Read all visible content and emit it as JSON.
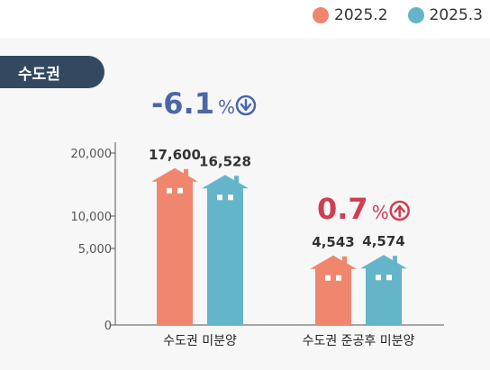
{
  "colors": {
    "series1": "#ef866d",
    "series2": "#64b5c9",
    "tag_bg": "#33495f",
    "decrease": "#4a67a6",
    "increase": "#cf3f52",
    "axis": "#555555",
    "tick_text": "#555555",
    "value_text": "#333333"
  },
  "legend": {
    "items": [
      {
        "label": "2025.2",
        "color": "#ef866d"
      },
      {
        "label": "2025.3",
        "color": "#64b5c9"
      }
    ]
  },
  "region_tag": "수도권",
  "changes": [
    {
      "value": "-6.1",
      "unit": "%",
      "direction": "down",
      "icon": "arrow-down-circle-icon"
    },
    {
      "value": "0.7",
      "unit": "%",
      "direction": "up",
      "icon": "arrow-up-circle-icon"
    }
  ],
  "chart_data": {
    "type": "bar",
    "categories": [
      "수도권 미분양",
      "수도권 준공후 미분양"
    ],
    "series": [
      {
        "name": "2025.2",
        "values": [
          17600,
          4543
        ],
        "color": "#ef866d"
      },
      {
        "name": "2025.3",
        "values": [
          16528,
          4574
        ],
        "color": "#64b5c9"
      }
    ],
    "value_labels": [
      [
        "17,600",
        "4,543"
      ],
      [
        "16,528",
        "4,574"
      ]
    ],
    "y_ticks": [
      0,
      5000,
      10000,
      20000
    ],
    "y_tick_labels": [
      "0",
      "5,000",
      "10,000",
      "20,000"
    ],
    "legend_position": "top-right",
    "bar_shape": "house"
  }
}
